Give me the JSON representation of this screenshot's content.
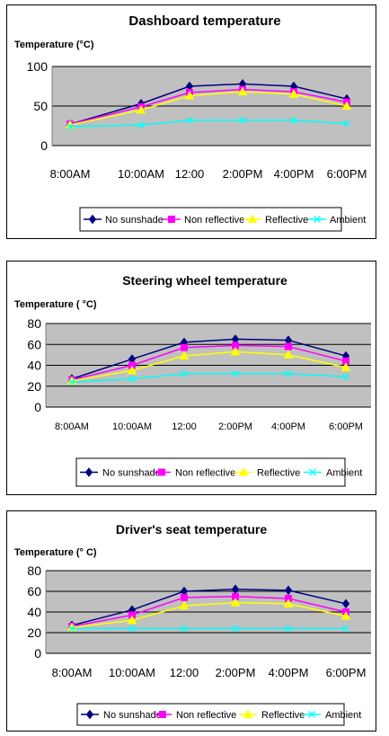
{
  "chart_data": [
    {
      "type": "line",
      "title": "Dashboard temperature",
      "ylabel": "Temperature (°C)",
      "xlabel": "",
      "categories": [
        "8:00AM",
        "10:00AM",
        "12:00",
        "2:00PM",
        "4:00PM",
        "6:00PM"
      ],
      "ylim": [
        0,
        100
      ],
      "yticks": [
        "0",
        "50",
        "100"
      ],
      "grid": true,
      "legend_position": "bottom",
      "series": [
        {
          "name": "No sunshade",
          "color": "#000080",
          "marker": "diamond",
          "values": [
            27,
            53,
            75,
            78,
            75,
            59
          ]
        },
        {
          "name": "Non reflective",
          "color": "#ff00ff",
          "marker": "square",
          "values": [
            27,
            49,
            67,
            71,
            68,
            55
          ]
        },
        {
          "name": "Reflective",
          "color": "#ffff00",
          "marker": "triangle",
          "values": [
            26,
            45,
            63,
            68,
            65,
            50
          ]
        },
        {
          "name": "Ambient",
          "color": "#00ffff",
          "marker": "x",
          "values": [
            24,
            26,
            32,
            32,
            32,
            28
          ]
        }
      ]
    },
    {
      "type": "line",
      "title": "Steering wheel temperature",
      "ylabel": "Temperature ( °C)",
      "xlabel": "",
      "categories": [
        "8:00AM",
        "10:00AM",
        "12:00",
        "2:00PM",
        "4:00PM",
        "6:00PM"
      ],
      "ylim": [
        0,
        80
      ],
      "yticks": [
        "0",
        "20",
        "40",
        "60",
        "80"
      ],
      "grid": true,
      "legend_position": "bottom",
      "series": [
        {
          "name": "No sunshade",
          "color": "#000080",
          "marker": "diamond",
          "values": [
            27,
            46,
            62,
            65,
            64,
            49
          ]
        },
        {
          "name": "Non reflective",
          "color": "#ff00ff",
          "marker": "square",
          "values": [
            26,
            40,
            57,
            59,
            58,
            44
          ]
        },
        {
          "name": "Reflective",
          "color": "#ffff00",
          "marker": "triangle",
          "values": [
            25,
            35,
            49,
            53,
            50,
            38
          ]
        },
        {
          "name": "Ambient",
          "color": "#00ffff",
          "marker": "x",
          "values": [
            24,
            27,
            32,
            32,
            32,
            29
          ]
        }
      ]
    },
    {
      "type": "line",
      "title": "Driver's seat temperature",
      "ylabel": "Temperature (° C)",
      "xlabel": "",
      "categories": [
        "8:00AM",
        "10:00AM",
        "12:00",
        "2:00PM",
        "4:00PM",
        "6:00PM"
      ],
      "ylim": [
        0,
        80
      ],
      "yticks": [
        "0",
        "20",
        "40",
        "60",
        "80"
      ],
      "grid": true,
      "legend_position": "bottom",
      "series": [
        {
          "name": "No sunshade",
          "color": "#000080",
          "marker": "diamond",
          "values": [
            27,
            42,
            60,
            62,
            61,
            48
          ]
        },
        {
          "name": "Non reflective",
          "color": "#ff00ff",
          "marker": "square",
          "values": [
            26,
            37,
            54,
            55,
            53,
            40
          ]
        },
        {
          "name": "Reflective",
          "color": "#ffff00",
          "marker": "triangle",
          "values": [
            25,
            32,
            46,
            49,
            48,
            36
          ]
        },
        {
          "name": "Ambient",
          "color": "#00ffff",
          "marker": "x",
          "values": [
            24,
            24,
            24,
            24,
            24,
            24
          ]
        }
      ]
    }
  ]
}
